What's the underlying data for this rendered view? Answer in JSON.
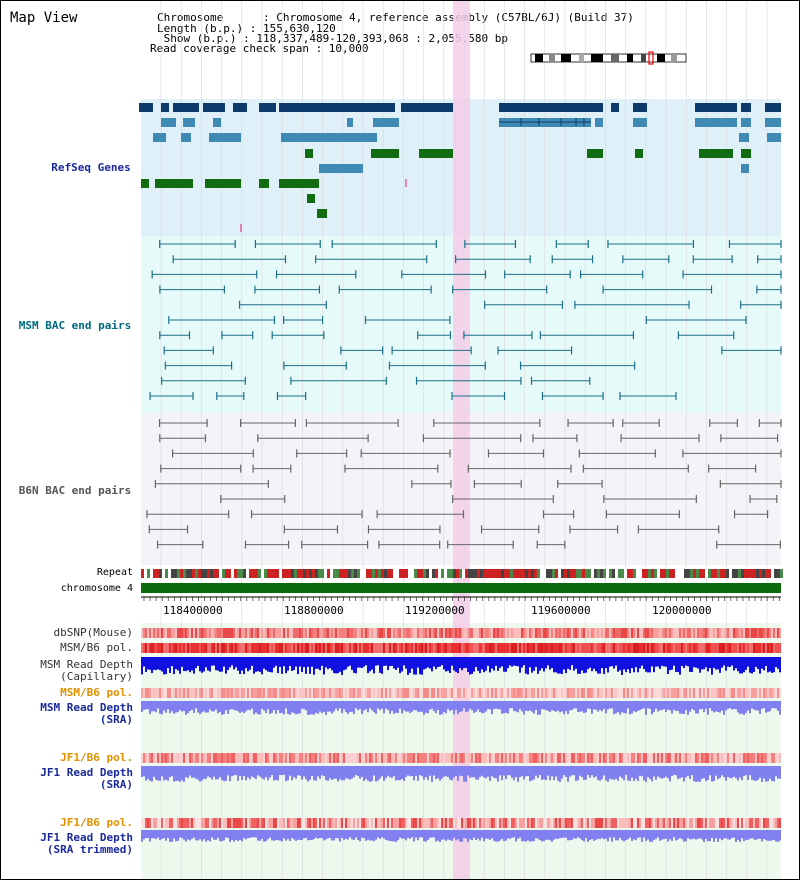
{
  "map_title": "Map View",
  "header": {
    "chromosome_line": "Chromosome      : Chromosome 4, reference assembly (C57BL/6J) (Build 37)",
    "length_line": "Length (b.p.) : 155,630,120",
    "show_line": " Show (b.p.) : 118,337,489-120,393,068 : 2,055,580 bp",
    "span_line": "Read coverage check span : 10,000"
  },
  "tracks": {
    "refseq": "RefSeq Genes",
    "msm_bac": "MSM BAC end pairs",
    "b6n_bac": "B6N BAC end pairs",
    "repeat": "Repeat",
    "chromosome": "chromosome 4"
  },
  "axis_ticks": [
    "118400000",
    "118800000",
    "119200000",
    "119600000",
    "120000000"
  ],
  "lower_tracks": {
    "dbsnp": "dbSNP(Mouse)",
    "msm_b6_pol_1": "MSM/B6 pol.",
    "msm_depth_cap": "MSM Read Depth\n(Capillary)",
    "msm_b6_pol_2": "MSM/B6 pol.",
    "msm_depth_sra": "MSM Read Depth\n(SRA)",
    "jf1_b6_pol_1": "JF1/B6 pol.",
    "jf1_depth_sra": "JF1 Read Depth\n(SRA)",
    "jf1_b6_pol_2": "JF1/B6 pol.",
    "jf1_depth_trim": "JF1 Read Depth\n(SRA trimmed)"
  },
  "colors": {
    "refseq_bg": "#dff0f8",
    "msm_bg": "#e7fafa",
    "b6n_bg": "#f3f3f8",
    "highlight": "#f4cce8",
    "gene_dark": "#0b3a6b",
    "gene_mid": "#3f8ab5",
    "gene_green": "#116b11",
    "msm_line": "#1a6f88",
    "b6n_line": "#666666",
    "chrom_bar": "#0b6a0b",
    "depth_blue": "#1010e0",
    "depth_light": "#8080f0",
    "pol_red": "#f06060",
    "label_blue": "#1a2a9a",
    "label_teal": "#006a80",
    "label_orange": "#e09000"
  }
}
